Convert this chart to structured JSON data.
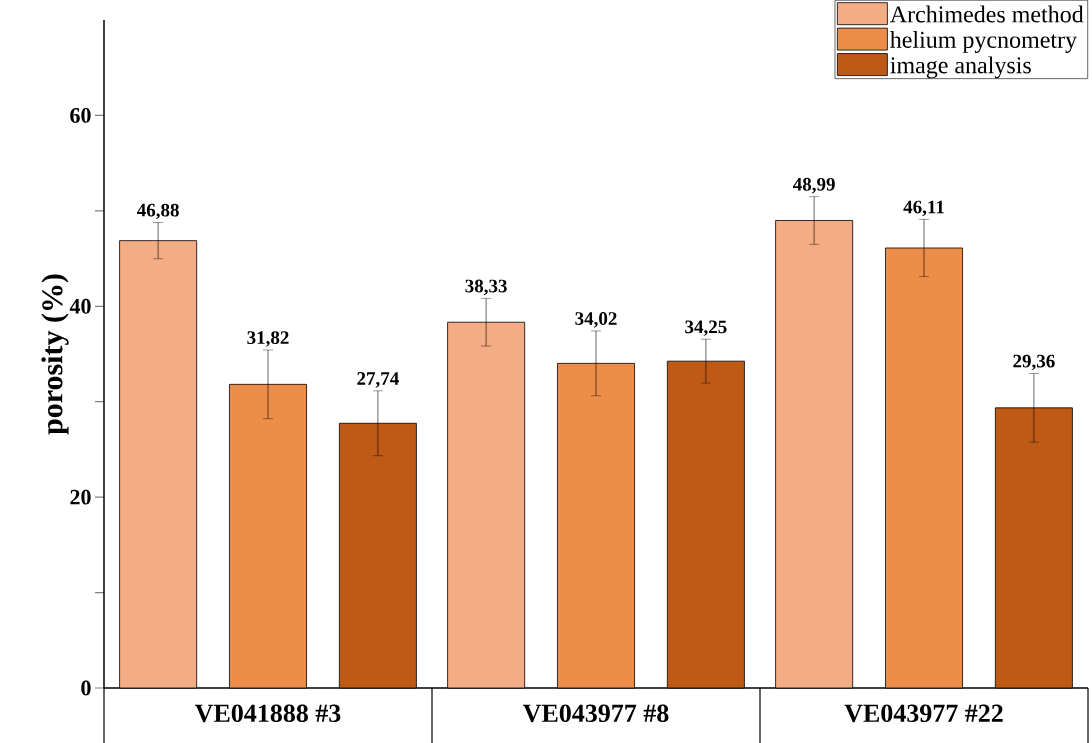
{
  "chart_data": {
    "type": "bar",
    "ylabel": "porosity (%)",
    "categories": [
      "VE041888 #3",
      "VE043977 #8",
      "VE043977 #22"
    ],
    "series": [
      {
        "name": "Archimedes method",
        "color": "#f4ac84",
        "values": [
          46.88,
          38.33,
          48.99
        ],
        "errors": [
          1.9,
          2.5,
          2.5
        ],
        "value_labels": [
          "46,88",
          "38,33",
          "48,99"
        ]
      },
      {
        "name": "helium pycnometry",
        "color": "#ec8e4a",
        "values": [
          31.82,
          34.02,
          46.11
        ],
        "errors": [
          3.6,
          3.4,
          3.0
        ],
        "value_labels": [
          "31,82",
          "34,02",
          "46,11"
        ]
      },
      {
        "name": "image analysis",
        "color": "#be5a15",
        "values": [
          27.74,
          34.25,
          29.36
        ],
        "errors": [
          3.4,
          2.3,
          3.6
        ],
        "value_labels": [
          "27,74",
          "34,25",
          "29,36"
        ]
      }
    ],
    "ylim": [
      0,
      70
    ],
    "yticks": [
      0,
      {
        "value": 10,
        "label": null
      },
      20,
      {
        "value": 30,
        "label": null
      },
      40,
      {
        "value": 50,
        "label": null
      },
      60
    ],
    "legend": "top right",
    "grid": false
  }
}
